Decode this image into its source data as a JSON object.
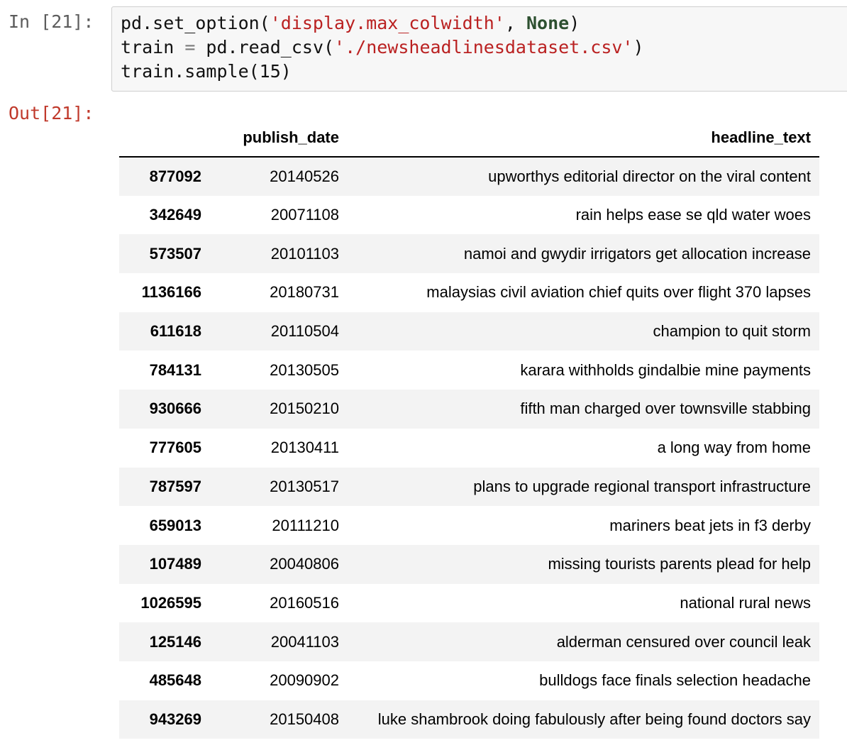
{
  "input_prompt": "In [21]:",
  "output_prompt": "Out[21]:",
  "code": {
    "line1": {
      "a": "pd.set_option(",
      "s": "'display.max_colwidth'",
      "b": ", ",
      "kw": "None",
      "c": ")"
    },
    "line2": {
      "a": "train ",
      "op": "=",
      "b": " pd.read_csv(",
      "s": "'./newsheadlinesdataset.csv'",
      "c": ")"
    },
    "line3": {
      "a": "train.sample(15)"
    }
  },
  "table": {
    "columns": [
      "",
      "publish_date",
      "headline_text"
    ],
    "rows": [
      {
        "index": "877092",
        "publish_date": "20140526",
        "headline_text": "upworthys editorial director on the viral content"
      },
      {
        "index": "342649",
        "publish_date": "20071108",
        "headline_text": "rain helps ease se qld water woes"
      },
      {
        "index": "573507",
        "publish_date": "20101103",
        "headline_text": "namoi and gwydir irrigators get allocation increase"
      },
      {
        "index": "1136166",
        "publish_date": "20180731",
        "headline_text": "malaysias civil aviation chief quits over flight 370 lapses"
      },
      {
        "index": "611618",
        "publish_date": "20110504",
        "headline_text": "champion to quit storm"
      },
      {
        "index": "784131",
        "publish_date": "20130505",
        "headline_text": "karara withholds gindalbie mine payments"
      },
      {
        "index": "930666",
        "publish_date": "20150210",
        "headline_text": "fifth man charged over townsville stabbing"
      },
      {
        "index": "777605",
        "publish_date": "20130411",
        "headline_text": "a long way from home"
      },
      {
        "index": "787597",
        "publish_date": "20130517",
        "headline_text": "plans to upgrade regional transport infrastructure"
      },
      {
        "index": "659013",
        "publish_date": "20111210",
        "headline_text": "mariners beat jets in f3 derby"
      },
      {
        "index": "107489",
        "publish_date": "20040806",
        "headline_text": "missing tourists parents plead for help"
      },
      {
        "index": "1026595",
        "publish_date": "20160516",
        "headline_text": "national rural news"
      },
      {
        "index": "125146",
        "publish_date": "20041103",
        "headline_text": "alderman censured over council leak"
      },
      {
        "index": "485648",
        "publish_date": "20090902",
        "headline_text": "bulldogs face finals selection headache"
      },
      {
        "index": "943269",
        "publish_date": "20150408",
        "headline_text": "luke shambrook doing fabulously after being found doctors say"
      }
    ]
  }
}
